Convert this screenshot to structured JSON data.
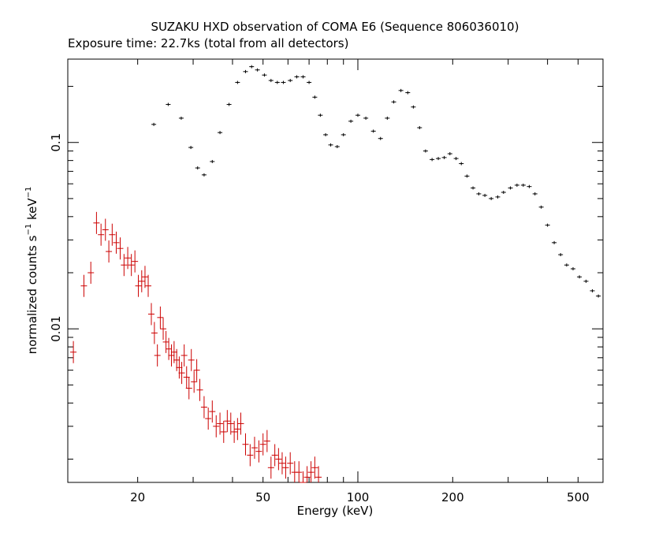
{
  "chart_data": {
    "type": "scatter",
    "title": "SUZAKU HXD observation of COMA E6 (Sequence 806036010)",
    "subtitle": "Exposure time: 22.7ks (total from all detectors)",
    "xlabel": "Energy (keV)",
    "ylabel_main": "normalized counts s",
    "ylabel_sup1": "−1",
    "ylabel_mid": " keV",
    "ylabel_sup2": "−1",
    "x_scale": "log",
    "y_scale": "log",
    "xlim": [
      12,
      600
    ],
    "ylim": [
      0.0015,
      0.28
    ],
    "x_tick_labels": [
      {
        "v": 20,
        "t": "20"
      },
      {
        "v": 50,
        "t": "50"
      },
      {
        "v": 100,
        "t": "100"
      },
      {
        "v": 200,
        "t": "200"
      },
      {
        "v": 500,
        "t": "500"
      }
    ],
    "y_tick_labels": [
      {
        "v": 0.1,
        "t": "0.1"
      },
      {
        "v": 0.01,
        "t": "0.01"
      }
    ],
    "legend": "none",
    "grid": false,
    "series": [
      {
        "color": "#000000",
        "points": [
          [
            22.5,
            0.125
          ],
          [
            25,
            0.16
          ],
          [
            27.5,
            0.135
          ],
          [
            29.5,
            0.094
          ],
          [
            31,
            0.073
          ],
          [
            32.5,
            0.067
          ],
          [
            34.5,
            0.079
          ],
          [
            36.5,
            0.113
          ],
          [
            39,
            0.16
          ],
          [
            41.5,
            0.21
          ],
          [
            44,
            0.24
          ],
          [
            46,
            0.255
          ],
          [
            48,
            0.245
          ],
          [
            50.5,
            0.23
          ],
          [
            53,
            0.215
          ],
          [
            55.5,
            0.21
          ],
          [
            58,
            0.21
          ],
          [
            61,
            0.215
          ],
          [
            64,
            0.225
          ],
          [
            67,
            0.225
          ],
          [
            70,
            0.21
          ],
          [
            73,
            0.175
          ],
          [
            76,
            0.14
          ],
          [
            79,
            0.11
          ],
          [
            82,
            0.097
          ],
          [
            86,
            0.095
          ],
          [
            90,
            0.11
          ],
          [
            95,
            0.13
          ],
          [
            100,
            0.14
          ],
          [
            106,
            0.135
          ],
          [
            112,
            0.115
          ],
          [
            118,
            0.105
          ],
          [
            124,
            0.135
          ],
          [
            130,
            0.165
          ],
          [
            137,
            0.19
          ],
          [
            144,
            0.185
          ],
          [
            150,
            0.155
          ],
          [
            157,
            0.12
          ],
          [
            164,
            0.09
          ],
          [
            172,
            0.081
          ],
          [
            180,
            0.082
          ],
          [
            188,
            0.083
          ],
          [
            196,
            0.087
          ],
          [
            205,
            0.082
          ],
          [
            213,
            0.077
          ],
          [
            222,
            0.066
          ],
          [
            232,
            0.057
          ],
          [
            242,
            0.053
          ],
          [
            253,
            0.052
          ],
          [
            265,
            0.05
          ],
          [
            278,
            0.051
          ],
          [
            290,
            0.054
          ],
          [
            305,
            0.057
          ],
          [
            320,
            0.059
          ],
          [
            335,
            0.059
          ],
          [
            350,
            0.058
          ],
          [
            365,
            0.053
          ],
          [
            382,
            0.045
          ],
          [
            400,
            0.036
          ],
          [
            420,
            0.029
          ],
          [
            440,
            0.025
          ],
          [
            460,
            0.022
          ],
          [
            482,
            0.021
          ],
          [
            505,
            0.019
          ],
          [
            530,
            0.018
          ],
          [
            555,
            0.016
          ],
          [
            580,
            0.015
          ]
        ]
      },
      {
        "color": "#cc0000",
        "points": [
          [
            12.5,
            0.0075
          ],
          [
            13.5,
            0.017
          ],
          [
            14.2,
            0.02
          ],
          [
            14.8,
            0.037
          ],
          [
            15.3,
            0.032
          ],
          [
            15.8,
            0.034
          ],
          [
            16.2,
            0.026
          ],
          [
            16.6,
            0.032
          ],
          [
            17.1,
            0.029
          ],
          [
            17.6,
            0.027
          ],
          [
            18.1,
            0.022
          ],
          [
            18.6,
            0.024
          ],
          [
            19.1,
            0.022
          ],
          [
            19.6,
            0.023
          ],
          [
            20.1,
            0.017
          ],
          [
            20.6,
            0.018
          ],
          [
            21.1,
            0.019
          ],
          [
            21.6,
            0.017
          ],
          [
            22.1,
            0.012
          ],
          [
            22.6,
            0.0095
          ],
          [
            23.1,
            0.0072
          ],
          [
            23.6,
            0.0115
          ],
          [
            24.1,
            0.01
          ],
          [
            24.6,
            0.0085
          ],
          [
            25.1,
            0.0078
          ],
          [
            25.6,
            0.0072
          ],
          [
            26.1,
            0.0075
          ],
          [
            26.6,
            0.0068
          ],
          [
            27.1,
            0.0062
          ],
          [
            27.6,
            0.0058
          ],
          [
            28.1,
            0.0072
          ],
          [
            28.6,
            0.0055
          ],
          [
            29.1,
            0.0048
          ],
          [
            29.6,
            0.0068
          ],
          [
            30.2,
            0.0052
          ],
          [
            30.8,
            0.006
          ],
          [
            31.5,
            0.0047
          ],
          [
            32.5,
            0.0038
          ],
          [
            33.5,
            0.0033
          ],
          [
            34.5,
            0.0036
          ],
          [
            35.5,
            0.003
          ],
          [
            36.5,
            0.0031
          ],
          [
            37.5,
            0.0028
          ],
          [
            38.5,
            0.0032
          ],
          [
            39.5,
            0.0031
          ],
          [
            40.5,
            0.0028
          ],
          [
            41.5,
            0.0029
          ],
          [
            42.5,
            0.0031
          ],
          [
            44,
            0.0024
          ],
          [
            45.5,
            0.0021
          ],
          [
            47,
            0.0023
          ],
          [
            48.5,
            0.0022
          ],
          [
            50,
            0.0024
          ],
          [
            51.5,
            0.0025
          ],
          [
            53,
            0.0018
          ],
          [
            54.5,
            0.0021
          ],
          [
            56,
            0.002
          ],
          [
            57.5,
            0.0019
          ],
          [
            59,
            0.0018
          ],
          [
            61,
            0.0019
          ],
          [
            63,
            0.0017
          ],
          [
            65,
            0.0017
          ],
          [
            67,
            0.0015
          ],
          [
            69,
            0.0016
          ],
          [
            71,
            0.0017
          ],
          [
            73,
            0.0018
          ],
          [
            75,
            0.0016
          ]
        ]
      }
    ]
  }
}
